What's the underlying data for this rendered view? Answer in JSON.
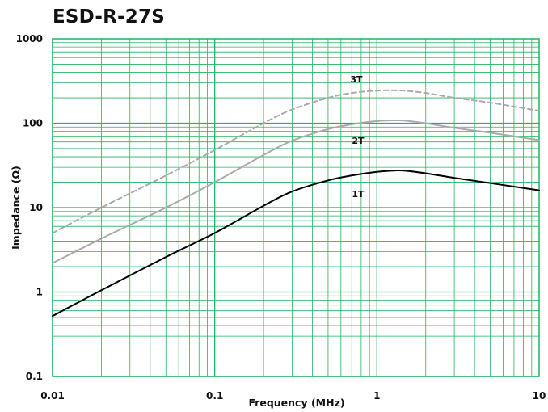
{
  "chart_data": {
    "type": "line",
    "title": "ESD-R-27S",
    "xlabel": "Frequency (MHz)",
    "ylabel": "Impedance (Ω)",
    "x_scale": "log",
    "y_scale": "log",
    "xlim": [
      0.01,
      10
    ],
    "ylim": [
      0.1,
      1000
    ],
    "x_ticks": [
      "0.01",
      "0.1",
      "1",
      "10"
    ],
    "y_ticks": [
      "0.1",
      "1",
      "10",
      "100",
      "1000"
    ],
    "grid": true,
    "colors": {
      "grid": "#22b35e",
      "frame": "#22b35e",
      "series_1T": "#000000",
      "series_2T": "#aaaaaa",
      "series_3T": "#aaaaaa"
    },
    "series": [
      {
        "name": "1T",
        "line_style": "solid",
        "x": [
          0.01,
          0.02,
          0.05,
          0.1,
          0.2,
          0.3,
          0.5,
          0.7,
          1,
          1.3,
          1.5,
          2,
          3,
          5,
          10
        ],
        "y": [
          0.52,
          1.05,
          2.6,
          5.0,
          10.5,
          15.5,
          21,
          24,
          26.5,
          27.5,
          27.3,
          25.5,
          22.5,
          19.5,
          16
        ]
      },
      {
        "name": "2T",
        "line_style": "solid",
        "x": [
          0.01,
          0.02,
          0.05,
          0.1,
          0.2,
          0.3,
          0.5,
          0.7,
          1,
          1.3,
          1.5,
          2,
          3,
          5,
          10
        ],
        "y": [
          2.2,
          4.3,
          10,
          20,
          42,
          62,
          85,
          97,
          106,
          108,
          107,
          100,
          88,
          77,
          63
        ]
      },
      {
        "name": "3T",
        "line_style": "dashed",
        "x": [
          0.01,
          0.02,
          0.05,
          0.1,
          0.2,
          0.3,
          0.5,
          0.7,
          1,
          1.3,
          1.5,
          2,
          3,
          5,
          10
        ],
        "y": [
          5,
          10,
          24,
          48,
          100,
          145,
          200,
          228,
          243,
          245,
          242,
          228,
          200,
          175,
          140
        ]
      }
    ]
  }
}
